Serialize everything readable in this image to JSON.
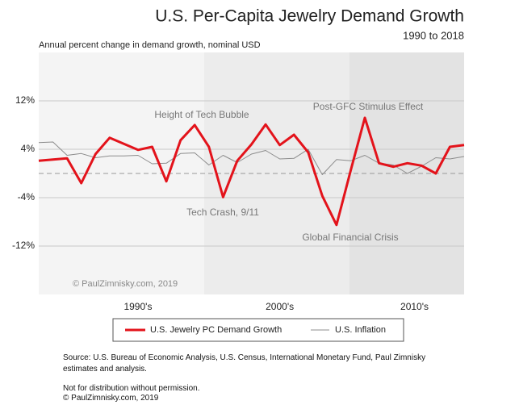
{
  "chart_data": {
    "type": "line",
    "title": "U.S. Per-Capita Jewelry Demand Growth",
    "subtitle": "1990 to 2018",
    "y_axis_label": "Annual percent change in demand growth, nominal USD",
    "x": [
      1988,
      1989,
      1990,
      1991,
      1992,
      1993,
      1994,
      1995,
      1996,
      1997,
      1998,
      1999,
      2000,
      2001,
      2002,
      2003,
      2004,
      2005,
      2006,
      2007,
      2008,
      2009,
      2010,
      2011,
      2012,
      2013,
      2014,
      2015,
      2016,
      2017,
      2018
    ],
    "xlim": [
      1988,
      2018
    ],
    "xticks": [
      {
        "value": 1995,
        "label": "1990's"
      },
      {
        "value": 2005,
        "label": "2000's"
      },
      {
        "value": 2014.5,
        "label": "2010's"
      }
    ],
    "ylim": [
      -20,
      20
    ],
    "yticks": [
      {
        "value": -12,
        "label": "-12%"
      },
      {
        "value": -4,
        "label": "-4%"
      },
      {
        "value": 4,
        "label": "4%"
      },
      {
        "value": 12,
        "label": "12%"
      }
    ],
    "grid": true,
    "series": [
      {
        "name": "U.S. Jewelry PC Demand Growth",
        "color": "#e3131b",
        "values": [
          2.1,
          2.3,
          2.5,
          -1.6,
          3.2,
          5.9,
          4.9,
          3.9,
          4.4,
          -1.3,
          5.5,
          8.0,
          4.4,
          -3.9,
          2.1,
          4.8,
          8.1,
          4.7,
          6.4,
          3.5,
          -3.7,
          -8.5,
          0.5,
          9.2,
          1.7,
          1.1,
          1.7,
          1.3,
          0.0,
          4.4,
          4.7
        ]
      },
      {
        "name": "U.S. Inflation",
        "color": "#8c8c8c",
        "values": [
          5.1,
          5.2,
          3.0,
          3.3,
          2.6,
          2.9,
          2.9,
          3.0,
          1.6,
          1.7,
          3.3,
          3.4,
          1.4,
          3.0,
          1.8,
          3.2,
          3.8,
          2.4,
          2.5,
          4.0,
          -0.2,
          2.3,
          2.1,
          3.0,
          1.7,
          1.4,
          0.0,
          1.2,
          2.6,
          2.4,
          2.8
        ]
      }
    ],
    "annotations": [
      {
        "text": "Height of Tech Bubble"
      },
      {
        "text": "Tech Crash, 9/11"
      },
      {
        "text": "Post-GFC Stimulus Effect"
      },
      {
        "text": "Global Financial Crisis"
      }
    ],
    "watermark": "© PaulZimnisky.com, 2019",
    "source": "Source: U.S. Bureau of Economic Analysis, U.S. Census, International Monetary Fund, Paul Zimnisky estimates and analysis.",
    "notes": [
      "Not for distribution without permission.",
      "© PaulZimnisky.com, 2019"
    ]
  }
}
